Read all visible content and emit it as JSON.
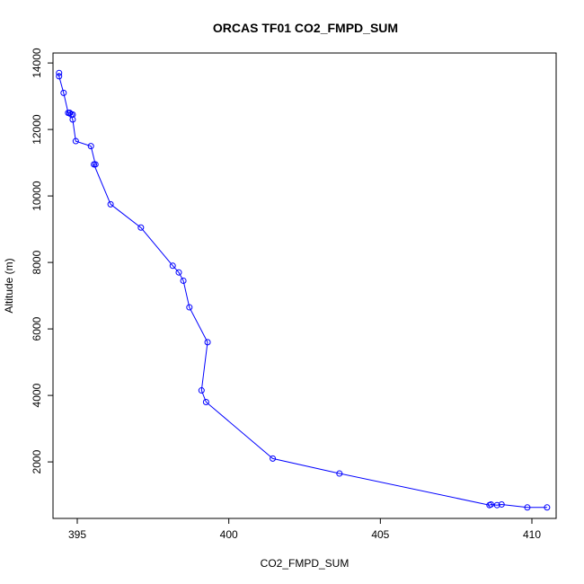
{
  "chart_data": {
    "type": "line",
    "title": "ORCAS TF01 CO2_FMPD_SUM",
    "xlabel": "CO2_FMPD_SUM",
    "ylabel": "Altitude (m)",
    "xlim": [
      394.2,
      410.8
    ],
    "ylim": [
      300,
      14300
    ],
    "xticks": [
      395,
      400,
      405,
      410
    ],
    "yticks": [
      2000,
      4000,
      6000,
      8000,
      10000,
      12000,
      14000
    ],
    "grid": false,
    "series_color": "#0000ff",
    "marker": "open-circle",
    "series": [
      {
        "x": [
          394.4,
          394.4,
          394.55,
          394.7,
          394.75,
          394.8,
          394.85,
          394.75,
          394.85,
          394.95,
          395.45,
          395.6,
          395.55,
          396.1,
          397.1,
          398.15,
          398.35,
          398.5,
          398.7,
          399.3,
          399.1,
          399.25,
          401.45,
          403.65,
          408.6,
          408.65,
          408.85,
          409.0,
          409.85,
          410.5
        ],
        "y": [
          13700,
          13600,
          13100,
          12500,
          12500,
          12450,
          12450,
          12500,
          12300,
          11650,
          11500,
          10950,
          10950,
          9750,
          9050,
          7900,
          7700,
          7450,
          6650,
          5600,
          4150,
          3800,
          2100,
          1650,
          700,
          720,
          700,
          720,
          630,
          630
        ]
      }
    ]
  }
}
